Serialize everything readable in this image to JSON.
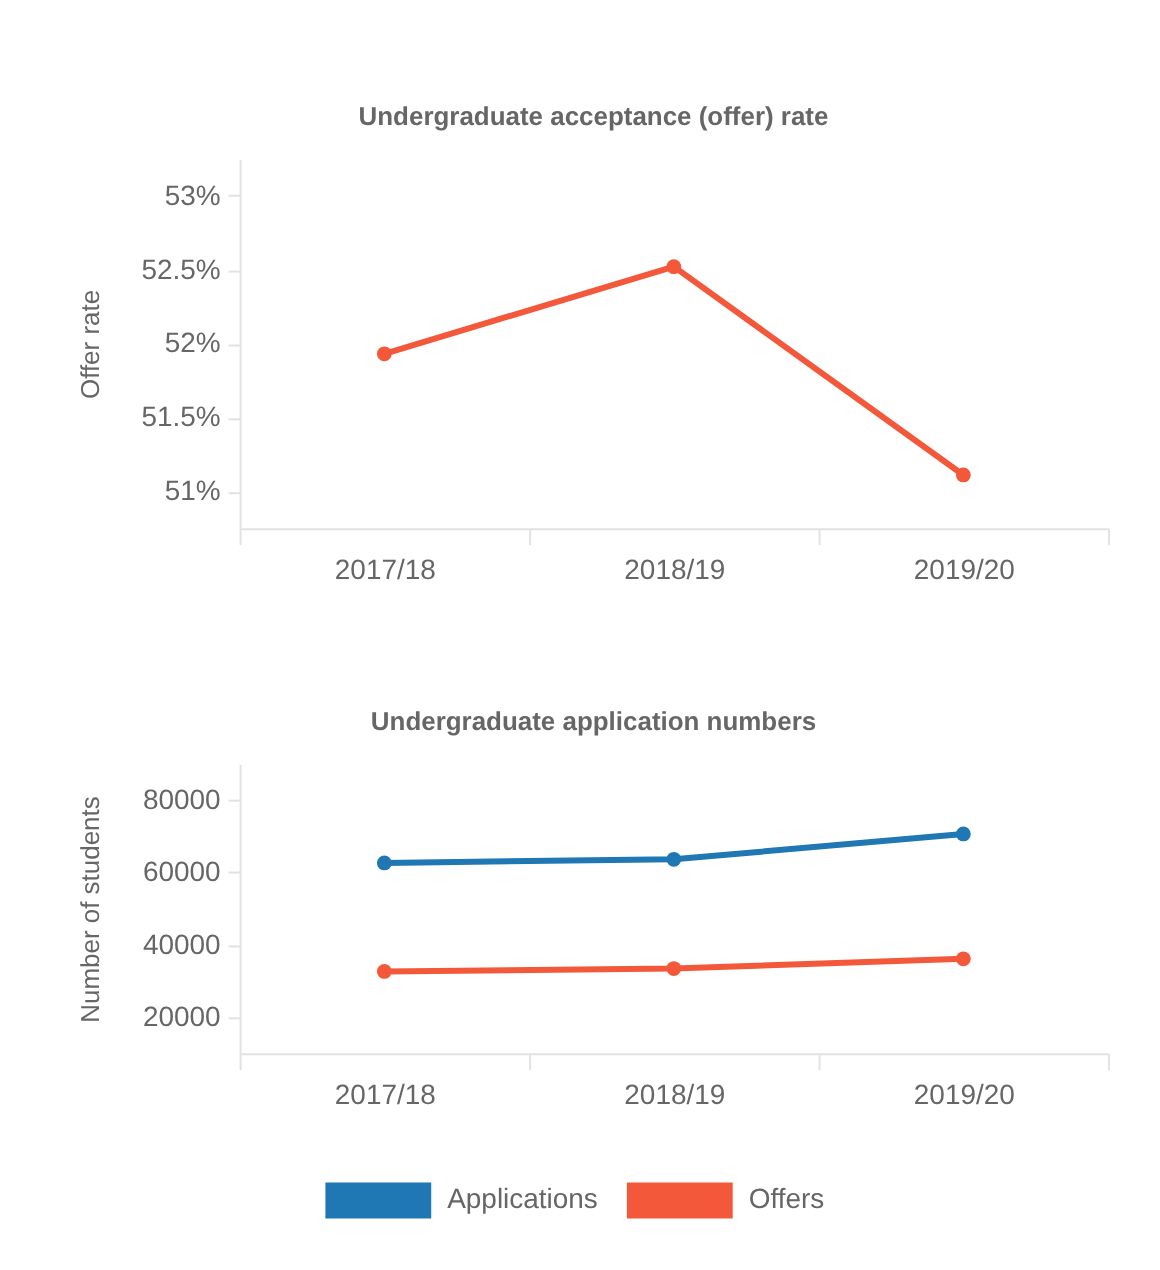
{
  "chart_data": [
    {
      "type": "line",
      "title": "Undergraduate acceptance (offer) rate",
      "ylabel": "Offer rate",
      "categories": [
        "2017/18",
        "2018/19",
        "2019/20"
      ],
      "series": [
        {
          "color": "#f4583a",
          "values": [
            51.93,
            52.52,
            51.11
          ]
        }
      ],
      "ylim": [
        50.75,
        53.25
      ],
      "yticks": [
        {
          "value": 51,
          "label": "51%"
        },
        {
          "value": 51.5,
          "label": "51.5%"
        },
        {
          "value": 52,
          "label": "52%"
        },
        {
          "value": 52.5,
          "label": "52.5%"
        },
        {
          "value": 53,
          "label": "53%"
        }
      ],
      "grid": false,
      "marker": "circle",
      "line_style": "solid"
    },
    {
      "type": "line",
      "title": "Undergraduate application numbers",
      "ylabel": "Number of students",
      "categories": [
        "2017/18",
        "2018/19",
        "2019/20"
      ],
      "series": [
        {
          "name": "Applications",
          "color": "#1f77b4",
          "values": [
            62600,
            63600,
            70600
          ]
        },
        {
          "name": "Offers",
          "color": "#f4583a",
          "values": [
            32600,
            33400,
            36100
          ]
        }
      ],
      "ylim": [
        10000,
        90000
      ],
      "yticks": [
        20000,
        40000,
        60000,
        80000
      ],
      "grid": false,
      "marker": "circle",
      "line_style": "solid",
      "legend": "bottom"
    }
  ]
}
